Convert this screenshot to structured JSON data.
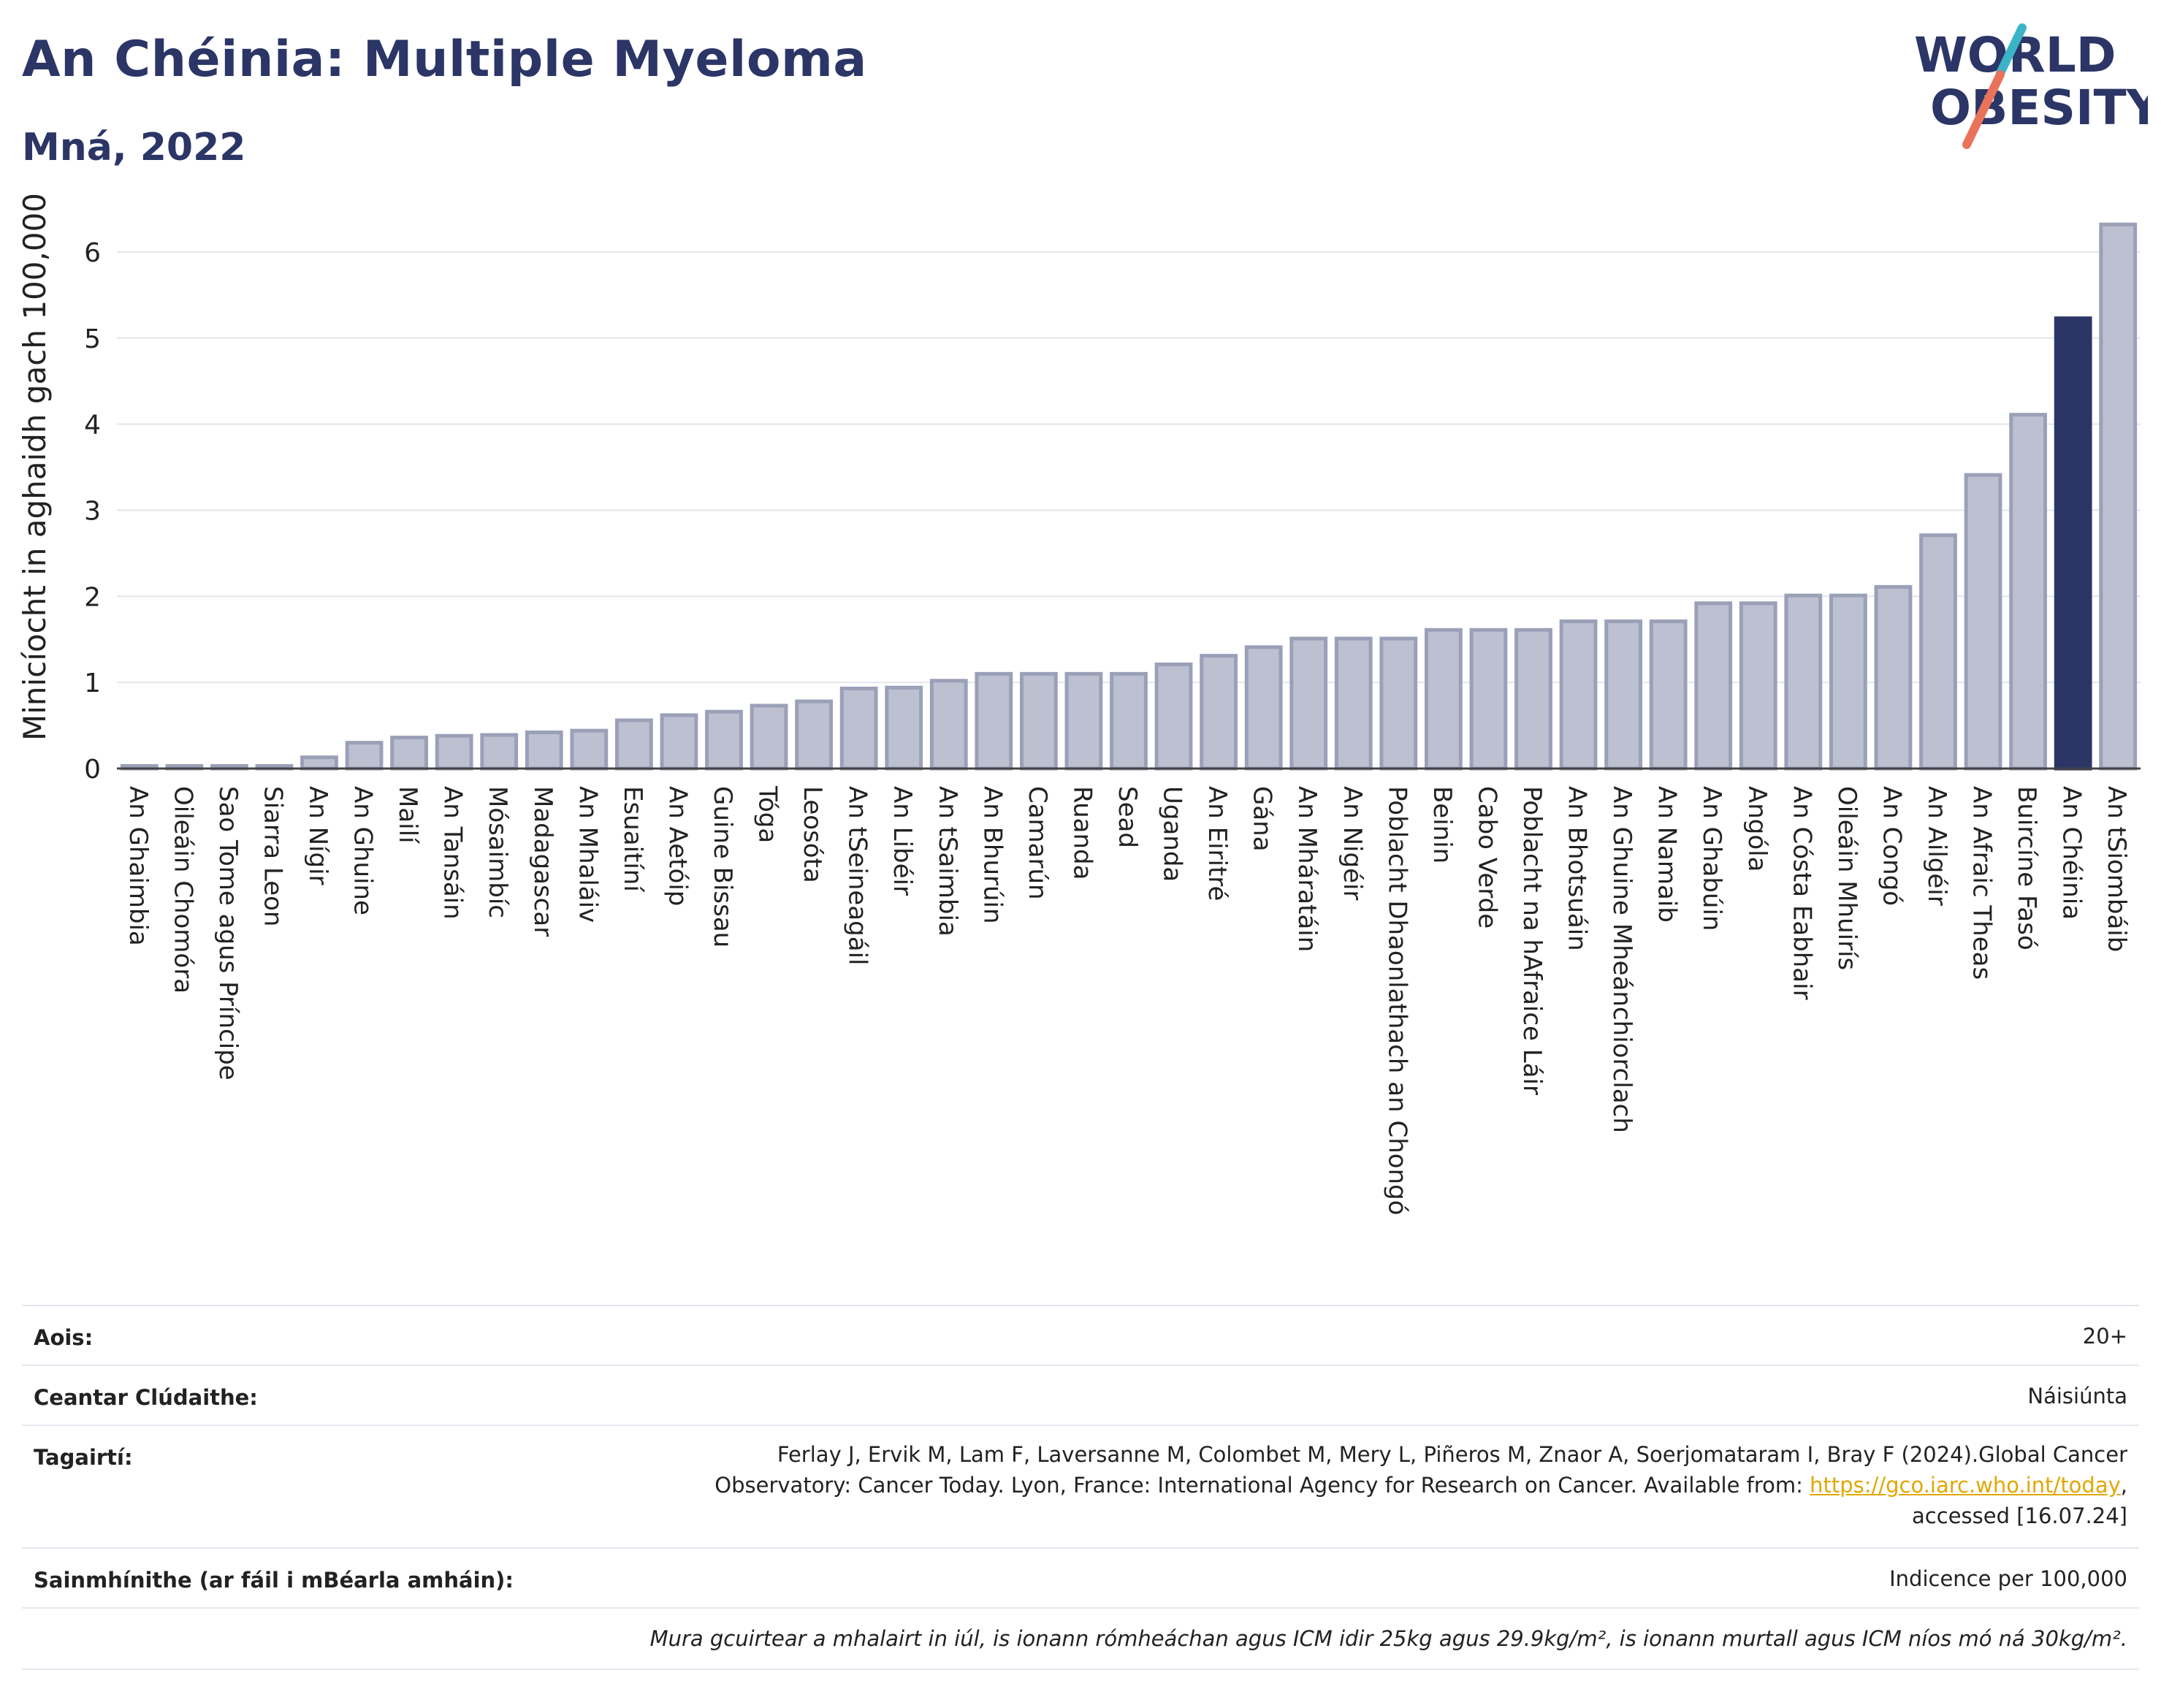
{
  "header": {
    "title": "An Chéinia: Multiple Myeloma",
    "subtitle": "Mná, 2022"
  },
  "logo": {
    "line1": "WORLD",
    "line2": "OBESITY",
    "accent_colors": [
      "#3cb4c8",
      "#e8735a"
    ],
    "text_color": "#2b3566"
  },
  "chart_data": {
    "type": "bar",
    "title": "An Chéinia: Multiple Myeloma",
    "subtitle": "Mná, 2022",
    "xlabel": "",
    "ylabel": "Minicíocht in aghaidh gach 100,000",
    "ylim": [
      0,
      6.5
    ],
    "yticks": [
      0,
      1,
      2,
      3,
      4,
      5,
      6
    ],
    "grid": true,
    "highlight": "An Chéinia",
    "colors": {
      "bar": "#bcc0d0",
      "bar_border": "#9aa0b8",
      "highlight": "#2b3566"
    },
    "categories": [
      "An Ghaimbia",
      "Oileáin Chomóra",
      "Sao Tome agus Príncipe",
      "Siarra Leon",
      "An Nígir",
      "An Ghuine",
      "Mailí",
      "An Tansáin",
      "Mósaimbíc",
      "Madagascar",
      "An Mhaláiv",
      "Esuaitíní",
      "An Aetóip",
      "Guine Bissau",
      "Tóga",
      "Leosóta",
      "An tSeineagáil",
      "An Libéir",
      "An tSaimbia",
      "An Bhurúin",
      "Camarún",
      "Ruanda",
      "Sead",
      "Uganda",
      "An Eiritré",
      "Gána",
      "An Mháratáin",
      "An Nigéir",
      "Poblacht Dhaonlathach an Chongó",
      "Beinin",
      "Cabo Verde",
      "Poblacht na hAfraice Láir",
      "An Bhotsuáin",
      "An Ghuine Mheánchiorclach",
      "An Namaib",
      "An Ghabúin",
      "Angóla",
      "An Cósta Eabhair",
      "Oileáin Mhuirís",
      "An Congó",
      "An Ailgéir",
      "An Afraic Theas",
      "Buircíne Fasó",
      "An Chéinia",
      "An tSiombáib"
    ],
    "values": [
      0.03,
      0.03,
      0.03,
      0.03,
      0.13,
      0.3,
      0.36,
      0.38,
      0.39,
      0.42,
      0.44,
      0.56,
      0.62,
      0.66,
      0.73,
      0.78,
      0.93,
      0.94,
      1.02,
      1.1,
      1.1,
      1.1,
      1.1,
      1.21,
      1.31,
      1.41,
      1.51,
      1.51,
      1.51,
      1.61,
      1.61,
      1.61,
      1.71,
      1.71,
      1.71,
      1.92,
      1.92,
      2.01,
      2.01,
      2.11,
      2.71,
      3.41,
      4.11,
      5.23,
      6.32
    ]
  },
  "info": {
    "age": {
      "label": "Aois:",
      "value": "20+"
    },
    "area": {
      "label": "Ceantar Clúdaithe:",
      "value": "Náisiúnta"
    },
    "refs": {
      "label": "Tagairtí:",
      "line1": "Ferlay J, Ervik M, Lam F, Laversanne M, Colombet M, Mery L, Piñeros M, Znaor A, Soerjomataram I, Bray F (2024).Global Cancer",
      "line2": "Observatory: Cancer Today. Lyon, France: International Agency for Research on Cancer. Available from: ",
      "link": "https://gco.iarc.who.int/today",
      "line2_end": ",",
      "line3": "accessed [16.07.24]"
    },
    "definitions": {
      "label": "Sainmhínithe (ar fáil i mBéarla amháin):",
      "value": "Indicence per 100,000"
    },
    "note": "Mura gcuirtear a mhalairt in iúl, is ionann rómheáchan agus ICM idir 25kg agus 29.9kg/m², is ionann murtall agus ICM níos mó ná 30kg/m²."
  }
}
